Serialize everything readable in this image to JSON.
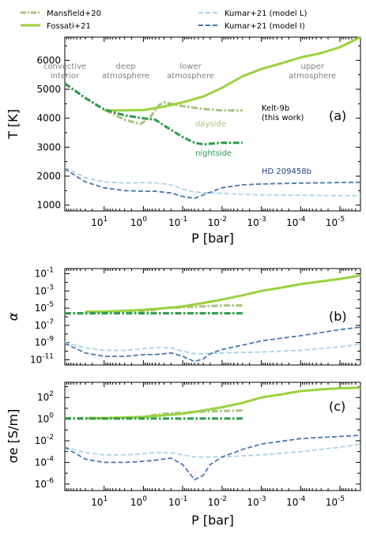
{
  "colors": {
    "mansfield": "#a8c27c",
    "fossati": "#9ad140",
    "nightside": "#2e9a4e",
    "kumar_L": "#a7d4e8",
    "kumar_I": "#4a78b0",
    "region_text": "#808080",
    "dayside_text": "#a8c27c",
    "nightside_text": "#2e9a4e",
    "hd_text": "#1f3f80"
  },
  "legend": {
    "mansfield": "Mansfield+20",
    "fossati": "Fossati+21",
    "kumar_L": "Kumar+21 (model L)",
    "kumar_I": "Kumar+21 (model I)"
  },
  "annotations": {
    "regions": [
      {
        "line1": "convective",
        "line2": "interior",
        "logP": 2.0
      },
      {
        "line1": "deep",
        "line2": "atmosphere",
        "logP": 0.45
      },
      {
        "line1": "lower",
        "line2": "atmosphere",
        "logP": -1.2
      },
      {
        "line1": "upper",
        "line2": "atmosphere",
        "logP": -4.3
      }
    ],
    "kelt_line1": "Kelt-9b",
    "kelt_line2": "(this work)",
    "dayside": "dayside",
    "nightside": "nightside",
    "hd": "HD 209458b",
    "tag_a": "(a)",
    "tag_b": "(b)",
    "tag_c": "(c)"
  },
  "chart_data": [
    {
      "type": "line",
      "panel": "a",
      "ylabel": "T [K]",
      "x_scale": "log_reversed",
      "xlim": [
        100,
        3e-06
      ],
      "ylim": [
        800,
        6800
      ],
      "yticks": [
        1000,
        2000,
        3000,
        4000,
        5000,
        6000
      ],
      "ytick_labels": [
        "1000",
        "2000",
        "3000",
        "4000",
        "5000",
        "6000"
      ],
      "series": [
        {
          "name": "Mansfield+20",
          "style": "dashdot",
          "x": [
            100,
            30,
            10,
            3,
            1.2,
            0.7,
            0.4,
            0.3,
            0.2,
            0.1,
            0.03,
            0.01,
            0.003
          ],
          "y": [
            5200,
            4700,
            4300,
            3950,
            3800,
            4000,
            4450,
            4550,
            4500,
            4420,
            4320,
            4270,
            4270
          ]
        },
        {
          "name": "Fossati+21",
          "style": "solid",
          "x": [
            10,
            3,
            1,
            0.3,
            0.1,
            0.03,
            0.01,
            0.003,
            0.001,
            0.0003,
            0.0001,
            3e-05,
            1e-05,
            3e-06
          ],
          "y": [
            4270,
            4270,
            4280,
            4400,
            4550,
            4750,
            5050,
            5450,
            5700,
            5900,
            6100,
            6250,
            6450,
            6800
          ]
        },
        {
          "name": "nightside",
          "style": "dashdot",
          "x": [
            100,
            30,
            10,
            3,
            1,
            0.5,
            0.3,
            0.1,
            0.05,
            0.03,
            0.01,
            0.003
          ],
          "y": [
            5200,
            4700,
            4300,
            4100,
            4000,
            3950,
            3750,
            3350,
            3150,
            3100,
            3150,
            3150
          ]
        },
        {
          "name": "Kumar+21 (model L)",
          "style": "dashed",
          "x": [
            100,
            30,
            10,
            3,
            1,
            0.5,
            0.2,
            0.1,
            0.05,
            0.01,
            0.001,
            0.0001,
            1e-05,
            3e-06
          ],
          "y": [
            2300,
            1950,
            1800,
            1760,
            1780,
            1770,
            1700,
            1550,
            1450,
            1400,
            1350,
            1340,
            1330,
            1330
          ]
        },
        {
          "name": "Kumar+21 (model I)",
          "style": "dashed",
          "x": [
            100,
            30,
            10,
            3,
            1,
            0.5,
            0.2,
            0.1,
            0.05,
            0.03,
            0.01,
            0.003,
            0.001,
            0.0001,
            1e-05,
            3e-06
          ],
          "y": [
            2250,
            1800,
            1600,
            1500,
            1480,
            1480,
            1420,
            1300,
            1230,
            1350,
            1600,
            1700,
            1730,
            1760,
            1780,
            1790
          ]
        }
      ]
    },
    {
      "type": "line",
      "panel": "b",
      "ylabel": "α",
      "x_scale": "log_reversed",
      "y_scale": "log",
      "xlim": [
        100,
        3e-06
      ],
      "ylim_log10": [
        -11.6,
        -0.4
      ],
      "ytick_exponents": [
        -11,
        -9,
        -7,
        -5,
        -3,
        -1
      ],
      "series": [
        {
          "name": "Mansfield+20",
          "style": "dashdot",
          "x": [
            100,
            30,
            10,
            3,
            1,
            0.5,
            0.3,
            0.1,
            0.03,
            0.01,
            0.003
          ],
          "log10y": [
            -5.6,
            -5.6,
            -5.6,
            -5.5,
            -5.4,
            -5.2,
            -5.0,
            -4.9,
            -4.8,
            -4.7,
            -4.7
          ]
        },
        {
          "name": "Fossati+21",
          "style": "solid",
          "x": [
            30,
            10,
            3,
            1,
            0.3,
            0.1,
            0.03,
            0.01,
            0.003,
            0.001,
            0.0003,
            0.0001,
            3e-05,
            1e-05,
            3e-06
          ],
          "log10y": [
            -5.4,
            -5.4,
            -5.3,
            -5.2,
            -5.0,
            -4.8,
            -4.4,
            -4.0,
            -3.5,
            -3.0,
            -2.6,
            -2.2,
            -1.9,
            -1.6,
            -1.2
          ]
        },
        {
          "name": "nightside",
          "style": "dashdot",
          "x": [
            100,
            30,
            10,
            3,
            1,
            0.5,
            0.3,
            0.1,
            0.03,
            0.01,
            0.003
          ],
          "log10y": [
            -5.6,
            -5.6,
            -5.6,
            -5.6,
            -5.6,
            -5.6,
            -5.6,
            -5.6,
            -5.6,
            -5.6,
            -5.6
          ]
        },
        {
          "name": "Kumar+21 (model L)",
          "style": "dashed",
          "x": [
            100,
            30,
            10,
            3,
            1,
            0.5,
            0.2,
            0.1,
            0.05,
            0.03,
            0.01,
            0.001,
            0.0001,
            1e-05,
            3e-06
          ],
          "log10y": [
            -9.0,
            -9.6,
            -9.9,
            -9.9,
            -9.7,
            -9.6,
            -9.6,
            -10.0,
            -10.3,
            -10.3,
            -10.2,
            -10.1,
            -9.9,
            -9.5,
            -9.2
          ]
        },
        {
          "name": "Kumar+21 (model I)",
          "style": "dashed",
          "x": [
            100,
            30,
            10,
            3,
            1,
            0.5,
            0.2,
            0.1,
            0.05,
            0.03,
            0.02,
            0.01,
            0.003,
            0.001,
            0.0001,
            1e-05,
            3e-06
          ],
          "log10y": [
            -9.1,
            -10.2,
            -10.6,
            -10.6,
            -10.4,
            -10.4,
            -10.2,
            -10.6,
            -11.2,
            -10.9,
            -10.3,
            -9.8,
            -9.3,
            -8.8,
            -8.2,
            -7.5,
            -7.2
          ]
        }
      ]
    },
    {
      "type": "line",
      "panel": "c",
      "ylabel": "σe [S/m]",
      "x_scale": "log_reversed",
      "y_scale": "log",
      "xlim": [
        100,
        3e-06
      ],
      "ylim_log10": [
        -6.6,
        3.4
      ],
      "ytick_exponents": [
        -6,
        -4,
        -2,
        0,
        2
      ],
      "xlabel": "P [bar]",
      "xticks": [
        10,
        1,
        0.1,
        0.01,
        0.001,
        0.0001,
        1e-05
      ],
      "xtick_exponents": [
        "1",
        "0",
        "-1",
        "-2",
        "-3",
        "-4",
        "-5"
      ],
      "series": [
        {
          "name": "Mansfield+20",
          "style": "dashdot",
          "x": [
            100,
            30,
            10,
            3,
            1,
            0.5,
            0.3,
            0.1,
            0.03,
            0.01,
            0.003
          ],
          "log10y": [
            0.1,
            0.1,
            0.1,
            0.15,
            0.2,
            0.4,
            0.5,
            0.6,
            0.7,
            0.75,
            0.8
          ]
        },
        {
          "name": "Fossati+21",
          "style": "solid",
          "x": [
            30,
            10,
            3,
            1,
            0.3,
            0.1,
            0.03,
            0.01,
            0.003,
            0.001,
            0.0003,
            0.0001,
            3e-05,
            1e-05,
            3e-06
          ],
          "log10y": [
            0.1,
            0.1,
            0.15,
            0.2,
            0.35,
            0.5,
            0.8,
            1.1,
            1.5,
            2.0,
            2.3,
            2.6,
            2.75,
            2.85,
            2.9
          ]
        },
        {
          "name": "nightside",
          "style": "dashdot",
          "x": [
            100,
            30,
            10,
            3,
            1,
            0.5,
            0.3,
            0.1,
            0.03,
            0.01,
            0.003
          ],
          "log10y": [
            0.05,
            0.05,
            0.05,
            0.05,
            0.05,
            0.05,
            0.05,
            0.05,
            0.05,
            0.05,
            0.05
          ]
        },
        {
          "name": "Kumar+21 (model L)",
          "style": "dashed",
          "x": [
            100,
            30,
            10,
            3,
            1,
            0.5,
            0.2,
            0.1,
            0.05,
            0.03,
            0.01,
            0.001,
            0.0001,
            1e-05,
            3e-06
          ],
          "log10y": [
            -2.6,
            -3.1,
            -3.3,
            -3.3,
            -3.2,
            -3.1,
            -3.1,
            -3.3,
            -3.5,
            -3.5,
            -3.5,
            -3.3,
            -3.0,
            -2.6,
            -2.3
          ]
        },
        {
          "name": "Kumar+21 (model I)",
          "style": "dashed",
          "x": [
            100,
            30,
            10,
            3,
            1,
            0.5,
            0.2,
            0.1,
            0.05,
            0.03,
            0.02,
            0.01,
            0.003,
            0.001,
            0.0001,
            1e-05,
            3e-06
          ],
          "log10y": [
            -2.6,
            -3.7,
            -4.0,
            -4.0,
            -3.9,
            -3.8,
            -3.6,
            -4.2,
            -5.6,
            -5.2,
            -4.2,
            -3.5,
            -2.8,
            -2.3,
            -1.8,
            -1.6,
            -1.5
          ]
        }
      ]
    }
  ]
}
